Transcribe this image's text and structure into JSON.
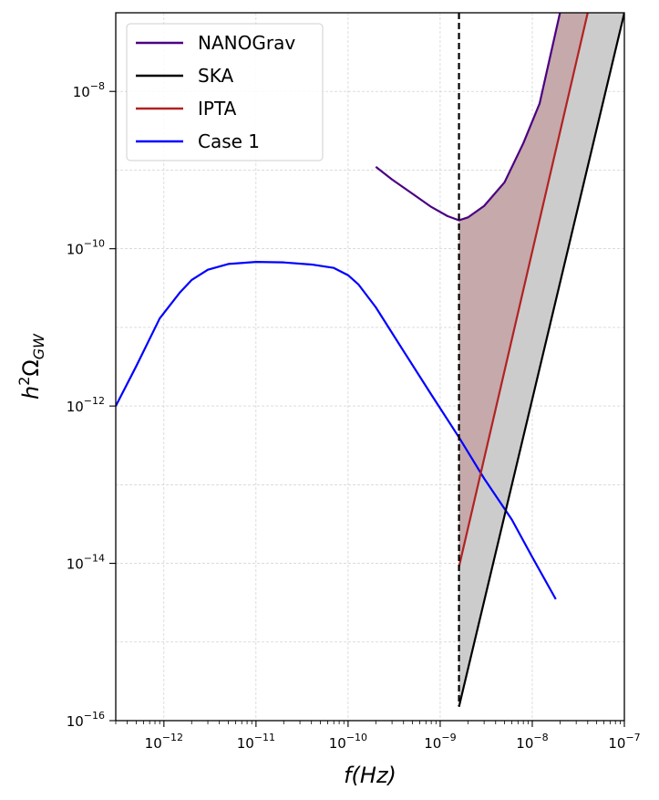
{
  "chart_data": {
    "type": "line",
    "xscale": "log",
    "yscale": "log",
    "xlim": [
      3e-13,
      1e-07
    ],
    "ylim": [
      1e-16,
      1e-07
    ],
    "grid": true,
    "legend_position": "top-left",
    "xlabel_parts": {
      "base": "f(Hz)"
    },
    "ylabel_parts": {
      "main": "h",
      "sup": "2",
      "greek": "Ω",
      "sub": "GW"
    },
    "x_ticks": [
      {
        "value": 1e-12,
        "base": "10",
        "exp": "−12"
      },
      {
        "value": 1e-11,
        "base": "10",
        "exp": "−11"
      },
      {
        "value": 1e-10,
        "base": "10",
        "exp": "−10"
      },
      {
        "value": 1e-09,
        "base": "10",
        "exp": "−9"
      },
      {
        "value": 1e-08,
        "base": "10",
        "exp": "−8"
      },
      {
        "value": 1e-07,
        "base": "10",
        "exp": "−7"
      }
    ],
    "y_ticks": [
      {
        "value": 1e-16,
        "base": "10",
        "exp": "−16"
      },
      {
        "value": 1e-14,
        "base": "10",
        "exp": "−14"
      },
      {
        "value": 1e-12,
        "base": "10",
        "exp": "−12"
      },
      {
        "value": 1e-10,
        "base": "10",
        "exp": "−10"
      },
      {
        "value": 1e-08,
        "base": "10",
        "exp": "−8"
      }
    ],
    "vertical_line": {
      "x": 1.6e-09,
      "style": "dashed",
      "color": "#000000"
    },
    "series": [
      {
        "name": "NANOGrav",
        "color": "#4b0082",
        "x": [
          2e-10,
          3e-10,
          5e-10,
          8e-10,
          1.2e-09,
          1.6e-09,
          2e-09,
          3e-09,
          5e-09,
          8e-09,
          1.2e-08,
          2e-08
        ],
        "y": [
          1.1e-09,
          7.6e-10,
          5e-10,
          3.4e-10,
          2.6e-10,
          2.3e-10,
          2.5e-10,
          3.5e-10,
          7e-10,
          2.2e-09,
          7e-09,
          1e-07
        ]
      },
      {
        "name": "SKA",
        "color": "#000000",
        "x": [
          1.6e-09,
          1e-07
        ],
        "y": [
          1.5e-16,
          1e-07
        ]
      },
      {
        "name": "IPTA",
        "color": "#b22222",
        "x": [
          1.6e-09,
          4e-08
        ],
        "y": [
          9e-15,
          1e-07
        ]
      },
      {
        "name": "Case 1",
        "color": "#0000ff",
        "x": [
          3e-13,
          5e-13,
          9e-13,
          1.5e-12,
          2e-12,
          3e-12,
          5e-12,
          1e-11,
          2e-11,
          4e-11,
          7e-11,
          1e-10,
          1.3e-10,
          2e-10,
          4e-10,
          8e-10,
          1.6e-09,
          3e-09,
          6e-09,
          1e-08,
          1.8e-08
        ],
        "y": [
          1e-12,
          3.2e-12,
          1.3e-11,
          2.8e-11,
          4e-11,
          5.4e-11,
          6.4e-11,
          6.8e-11,
          6.7e-11,
          6.3e-11,
          5.7e-11,
          4.6e-11,
          3.5e-11,
          1.8e-11,
          5e-12,
          1.4e-12,
          4e-13,
          1.2e-13,
          3.6e-14,
          1.2e-14,
          3.5e-15
        ]
      }
    ],
    "fills": [
      {
        "between": [
          "SKA",
          "IPTA"
        ],
        "color": "#cccccc"
      },
      {
        "between": [
          "IPTA",
          "NANOGrav"
        ],
        "color": "#c5a9ab"
      }
    ]
  }
}
